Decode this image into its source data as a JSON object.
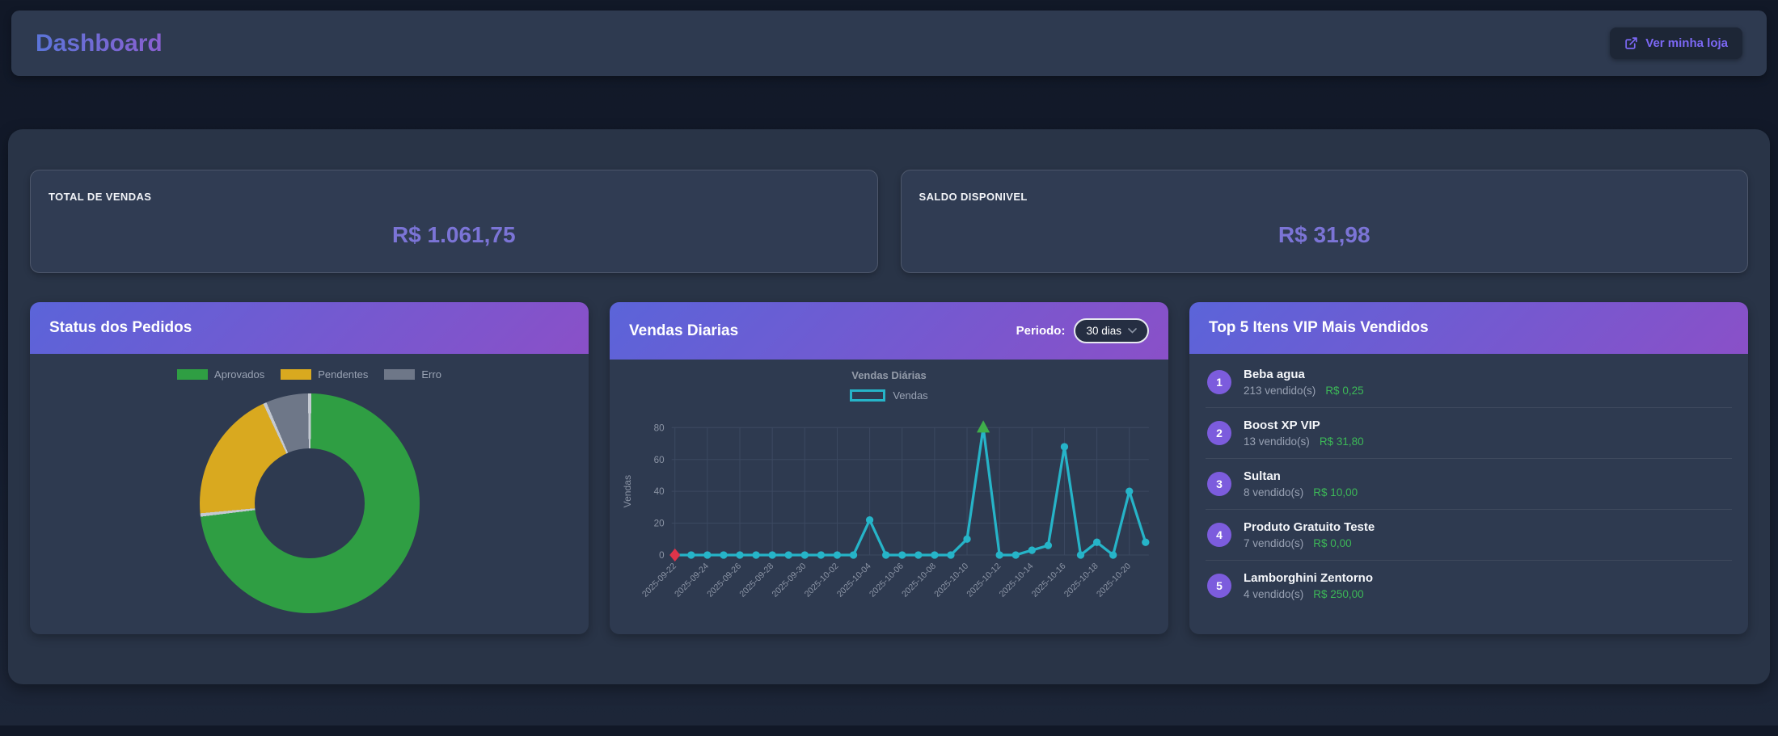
{
  "header": {
    "title": "Dashboard",
    "store_button_label": "Ver minha loja"
  },
  "stats": [
    {
      "label": "TOTAL DE VENDAS",
      "value": "R$ 1.061,75"
    },
    {
      "label": "SALDO DISPONIVEL",
      "value": "R$ 31,98"
    }
  ],
  "orders_panel": {
    "title": "Status dos Pedidos"
  },
  "sales_panel": {
    "title": "Vendas Diarias",
    "period_label": "Periodo:",
    "period_value": "30 dias"
  },
  "top_panel": {
    "title": "Top 5 Itens VIP Mais Vendidos",
    "items": [
      {
        "rank": "1",
        "name": "Beba agua",
        "sold": "213 vendido(s)",
        "price": "R$ 0,25"
      },
      {
        "rank": "2",
        "name": "Boost XP VIP",
        "sold": "13 vendido(s)",
        "price": "R$ 31,80"
      },
      {
        "rank": "3",
        "name": "Sultan",
        "sold": "8 vendido(s)",
        "price": "R$ 10,00"
      },
      {
        "rank": "4",
        "name": "Produto Gratuito Teste",
        "sold": "7 vendido(s)",
        "price": "R$ 0,00"
      },
      {
        "rank": "5",
        "name": "Lamborghini Zentorno",
        "sold": "4 vendido(s)",
        "price": "R$ 250,00"
      }
    ]
  },
  "colors": {
    "accent_purple": "#7b74d6",
    "button_purple": "#7c68f5",
    "badge_purple": "#7c5cdd",
    "price_green": "#3cb857",
    "panel_header_gradient": [
      "#5b64d9",
      "#8a50c8"
    ],
    "title_gradient": [
      "#5b75d9",
      "#8a5fd0"
    ],
    "panel_bg": "#2e3a50",
    "page_bg": "#141c2e",
    "line_teal": "#26b4c8"
  },
  "chart_data": [
    {
      "type": "pie",
      "donut": true,
      "title": "Status dos Pedidos",
      "labels": [
        "Aprovados",
        "Pendentes",
        "Erro"
      ],
      "values_pct": [
        73.3,
        20.0,
        6.7
      ],
      "colors": [
        "#2f9e43",
        "#d9a91f",
        "#6e7788"
      ],
      "legend_position": "top"
    },
    {
      "type": "line",
      "title": "Vendas Diárias",
      "ylabel": "Vendas",
      "ylim": [
        0,
        80
      ],
      "yticks": [
        0,
        20,
        40,
        60,
        80
      ],
      "x_tick_step": 2,
      "grid": true,
      "legend": [
        "Vendas"
      ],
      "line_color": "#26b4c8",
      "first_point_marker": {
        "shape": "diamond",
        "color": "#e0344a",
        "x": "2025-09-22",
        "y": 0
      },
      "peak_marker": {
        "shape": "triangle-up",
        "color": "#3fae4a",
        "x": "2025-10-11",
        "y": 80
      },
      "x": [
        "2025-09-22",
        "2025-09-23",
        "2025-09-24",
        "2025-09-25",
        "2025-09-26",
        "2025-09-27",
        "2025-09-28",
        "2025-09-29",
        "2025-09-30",
        "2025-10-01",
        "2025-10-02",
        "2025-10-03",
        "2025-10-04",
        "2025-10-05",
        "2025-10-06",
        "2025-10-07",
        "2025-10-08",
        "2025-10-09",
        "2025-10-10",
        "2025-10-11",
        "2025-10-12",
        "2025-10-13",
        "2025-10-14",
        "2025-10-15",
        "2025-10-16",
        "2025-10-17",
        "2025-10-18",
        "2025-10-19",
        "2025-10-20",
        "2025-10-21"
      ],
      "series": [
        {
          "name": "Vendas",
          "values": [
            0,
            0,
            0,
            0,
            0,
            0,
            0,
            0,
            0,
            0,
            0,
            0,
            22,
            0,
            0,
            0,
            0,
            0,
            10,
            80,
            0,
            0,
            3,
            6,
            68,
            0,
            8,
            0,
            40,
            8
          ]
        }
      ]
    }
  ]
}
